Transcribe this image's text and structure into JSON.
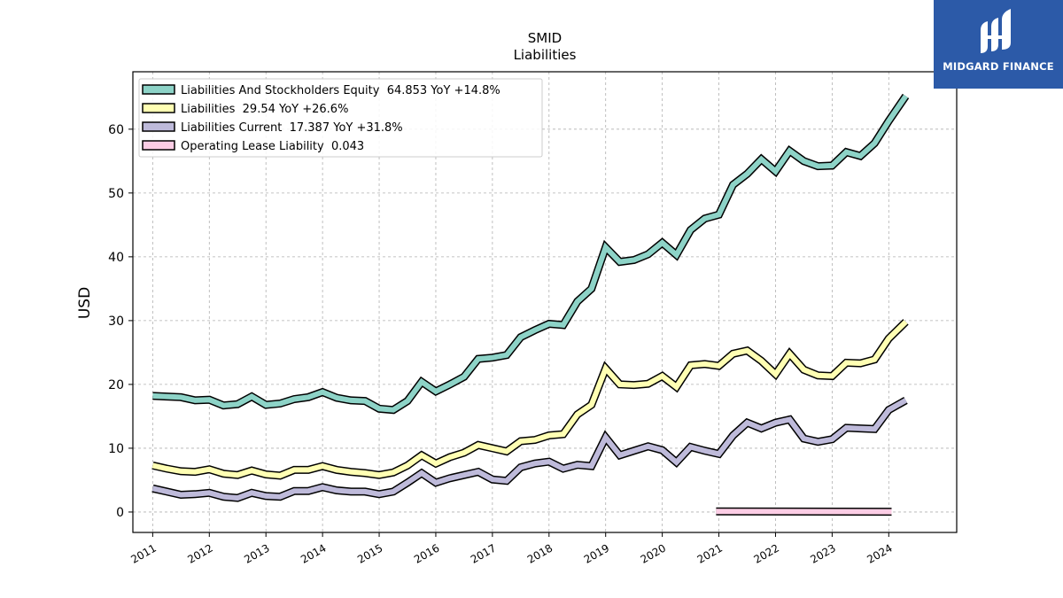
{
  "chart_data": {
    "type": "line",
    "title": "SMID",
    "subtitle": "Liabilities",
    "ylabel": "USD",
    "xlim": [
      2010.65,
      2025.2
    ],
    "ylim": [
      -3.2,
      69
    ],
    "yticks": [
      0,
      10,
      20,
      30,
      40,
      50,
      60
    ],
    "xticks": [
      2011,
      2012,
      2013,
      2014,
      2015,
      2016,
      2017,
      2018,
      2019,
      2020,
      2021,
      2022,
      2023,
      2024
    ],
    "xtick_labels": [
      "2011",
      "2012",
      "2013",
      "2014",
      "2015",
      "2016",
      "2017",
      "2018",
      "2019",
      "2020",
      "2021",
      "2022",
      "2023",
      "2024"
    ],
    "grid": true,
    "legend_position": "top-left",
    "series": [
      {
        "name": "Liabilities And Stockholders Equity  64.853 YoY +14.8%",
        "color": "#8dd3c7",
        "x": [
          2011.0,
          2011.25,
          2011.5,
          2011.75,
          2012.0,
          2012.25,
          2012.5,
          2012.75,
          2013.0,
          2013.25,
          2013.5,
          2013.75,
          2014.0,
          2014.25,
          2014.5,
          2014.75,
          2015.0,
          2015.25,
          2015.5,
          2015.75,
          2016.0,
          2016.25,
          2016.5,
          2016.75,
          2017.0,
          2017.25,
          2017.5,
          2017.75,
          2018.0,
          2018.25,
          2018.5,
          2018.75,
          2019.0,
          2019.25,
          2019.5,
          2019.75,
          2020.0,
          2020.25,
          2020.5,
          2020.75,
          2021.0,
          2021.25,
          2021.5,
          2021.75,
          2022.0,
          2022.25,
          2022.5,
          2022.75,
          2023.0,
          2023.25,
          2023.5,
          2023.75,
          2024.0,
          2024.3
        ],
        "values": [
          18.2,
          18.1,
          18.0,
          17.5,
          17.6,
          16.7,
          16.9,
          18.1,
          16.8,
          17.0,
          17.7,
          18.0,
          18.8,
          17.9,
          17.5,
          17.4,
          16.2,
          16.0,
          17.4,
          20.4,
          18.9,
          20.0,
          21.2,
          24.0,
          24.2,
          24.6,
          27.4,
          28.5,
          29.5,
          29.3,
          33.0,
          35.0,
          41.5,
          39.2,
          39.5,
          40.4,
          42.2,
          40.3,
          44.2,
          46.0,
          46.6,
          51.3,
          53.0,
          55.3,
          53.4,
          56.6,
          55.0,
          54.2,
          54.3,
          56.4,
          55.8,
          57.8,
          61.3,
          65.2
        ]
      },
      {
        "name": "Liabilities  29.54 YoY +26.6%",
        "color": "#ffffb3",
        "x": [
          2011.0,
          2011.25,
          2011.5,
          2011.75,
          2012.0,
          2012.25,
          2012.5,
          2012.75,
          2013.0,
          2013.25,
          2013.5,
          2013.75,
          2014.0,
          2014.25,
          2014.5,
          2014.75,
          2015.0,
          2015.25,
          2015.5,
          2015.75,
          2016.0,
          2016.25,
          2016.5,
          2016.75,
          2017.0,
          2017.25,
          2017.5,
          2017.75,
          2018.0,
          2018.25,
          2018.5,
          2018.75,
          2019.0,
          2019.25,
          2019.5,
          2019.75,
          2020.0,
          2020.25,
          2020.5,
          2020.75,
          2021.0,
          2021.25,
          2021.5,
          2021.75,
          2022.0,
          2022.25,
          2022.5,
          2022.75,
          2023.0,
          2023.25,
          2023.5,
          2023.75,
          2024.0,
          2024.3
        ],
        "values": [
          7.3,
          6.8,
          6.4,
          6.3,
          6.7,
          6.0,
          5.8,
          6.5,
          5.9,
          5.7,
          6.6,
          6.6,
          7.2,
          6.6,
          6.3,
          6.1,
          5.8,
          6.2,
          7.3,
          8.9,
          7.6,
          8.6,
          9.3,
          10.5,
          10.0,
          9.5,
          11.1,
          11.3,
          12.0,
          12.2,
          15.3,
          16.8,
          22.5,
          20.0,
          19.9,
          20.1,
          21.3,
          19.6,
          23.0,
          23.2,
          22.9,
          24.8,
          25.3,
          23.7,
          21.6,
          24.8,
          22.3,
          21.4,
          21.3,
          23.4,
          23.3,
          23.9,
          27.2,
          29.8
        ]
      },
      {
        "name": "Liabilities Current  17.387 YoY +31.8%",
        "color": "#bebada",
        "x": [
          2011.0,
          2011.25,
          2011.5,
          2011.75,
          2012.0,
          2012.25,
          2012.5,
          2012.75,
          2013.0,
          2013.25,
          2013.5,
          2013.75,
          2014.0,
          2014.25,
          2014.5,
          2014.75,
          2015.0,
          2015.25,
          2015.5,
          2015.75,
          2016.0,
          2016.25,
          2016.5,
          2016.75,
          2017.0,
          2017.25,
          2017.5,
          2017.75,
          2018.0,
          2018.25,
          2018.5,
          2018.75,
          2019.0,
          2019.25,
          2019.5,
          2019.75,
          2020.0,
          2020.25,
          2020.5,
          2020.75,
          2021.0,
          2021.25,
          2021.5,
          2021.75,
          2022.0,
          2022.25,
          2022.5,
          2022.75,
          2023.0,
          2023.25,
          2023.5,
          2023.75,
          2024.0,
          2024.3
        ],
        "values": [
          3.7,
          3.2,
          2.7,
          2.8,
          3.0,
          2.4,
          2.2,
          3.0,
          2.5,
          2.4,
          3.3,
          3.3,
          3.9,
          3.4,
          3.2,
          3.2,
          2.8,
          3.2,
          4.6,
          6.1,
          4.6,
          5.3,
          5.8,
          6.3,
          5.1,
          4.9,
          7.0,
          7.6,
          7.9,
          6.8,
          7.4,
          7.2,
          11.7,
          8.9,
          9.6,
          10.3,
          9.7,
          7.8,
          10.2,
          9.6,
          9.1,
          12.0,
          14.0,
          13.1,
          14.0,
          14.5,
          11.5,
          11.0,
          11.4,
          13.2,
          13.1,
          13.0,
          16.0,
          17.5
        ]
      },
      {
        "name": "Operating Lease Liability  0.043",
        "color": "#fccde5",
        "x": [
          2020.95,
          2024.05
        ],
        "values": [
          0.1,
          0.043
        ]
      }
    ]
  },
  "watermark": {
    "text": "MIDGARD FINANCE",
    "color": "#2c5aa8"
  }
}
